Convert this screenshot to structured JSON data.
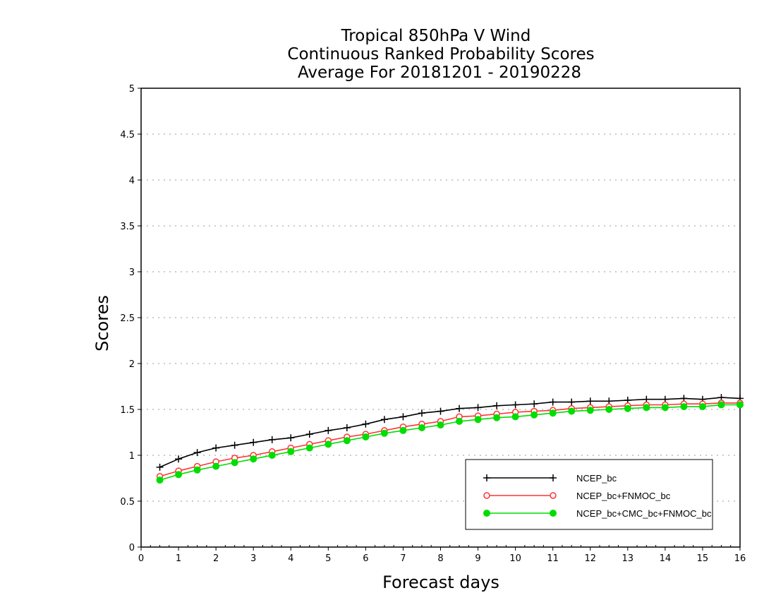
{
  "chart_data": {
    "type": "line",
    "title": [
      "Tropical 850hPa V Wind",
      "Continuous Ranked Probability Scores",
      "Average For 20181201 - 20190228"
    ],
    "xlabel": "Forecast days",
    "ylabel": "Scores",
    "xlim": [
      0,
      16
    ],
    "ylim": [
      0,
      5
    ],
    "xticks": [
      "0",
      "1",
      "2",
      "3",
      "4",
      "5",
      "6",
      "7",
      "8",
      "9",
      "10",
      "11",
      "12",
      "13",
      "14",
      "15",
      "16"
    ],
    "yticks": [
      "0",
      "0.5",
      "1",
      "1.5",
      "2",
      "2.5",
      "3",
      "3.5",
      "4",
      "4.5",
      "5"
    ],
    "grid": "horizontal dotted",
    "legend_position": "bottom-right",
    "x": [
      0.5,
      1,
      1.5,
      2,
      2.5,
      3,
      3.5,
      4,
      4.5,
      5,
      5.5,
      6,
      6.5,
      7,
      7.5,
      8,
      8.5,
      9,
      9.5,
      10,
      10.5,
      11,
      11.5,
      12,
      12.5,
      13,
      13.5,
      14,
      14.5,
      15,
      15.5,
      16
    ],
    "series": [
      {
        "name": "NCEP_bc",
        "color": "#000000",
        "marker": "plus",
        "values": [
          0.87,
          0.96,
          1.03,
          1.08,
          1.11,
          1.14,
          1.17,
          1.19,
          1.23,
          1.27,
          1.3,
          1.34,
          1.39,
          1.42,
          1.46,
          1.48,
          1.51,
          1.52,
          1.54,
          1.55,
          1.56,
          1.58,
          1.58,
          1.59,
          1.59,
          1.6,
          1.61,
          1.61,
          1.62,
          1.61,
          1.63,
          1.62
        ]
      },
      {
        "name": "NCEP_bc+FNMOC_bc",
        "color": "#ff3333",
        "marker": "open-circle",
        "values": [
          0.77,
          0.83,
          0.88,
          0.93,
          0.97,
          1.0,
          1.04,
          1.08,
          1.12,
          1.16,
          1.2,
          1.23,
          1.27,
          1.31,
          1.34,
          1.37,
          1.42,
          1.43,
          1.45,
          1.47,
          1.48,
          1.49,
          1.51,
          1.52,
          1.53,
          1.54,
          1.55,
          1.55,
          1.56,
          1.56,
          1.57,
          1.57
        ]
      },
      {
        "name": "NCEP_bc+CMC_bc+FNMOC_bc",
        "color": "#00dd00",
        "marker": "filled-circle",
        "values": [
          0.73,
          0.79,
          0.84,
          0.88,
          0.92,
          0.96,
          1.0,
          1.04,
          1.08,
          1.12,
          1.16,
          1.2,
          1.24,
          1.27,
          1.3,
          1.33,
          1.37,
          1.39,
          1.41,
          1.42,
          1.44,
          1.46,
          1.48,
          1.49,
          1.5,
          1.51,
          1.52,
          1.52,
          1.53,
          1.53,
          1.55,
          1.55
        ]
      }
    ]
  }
}
